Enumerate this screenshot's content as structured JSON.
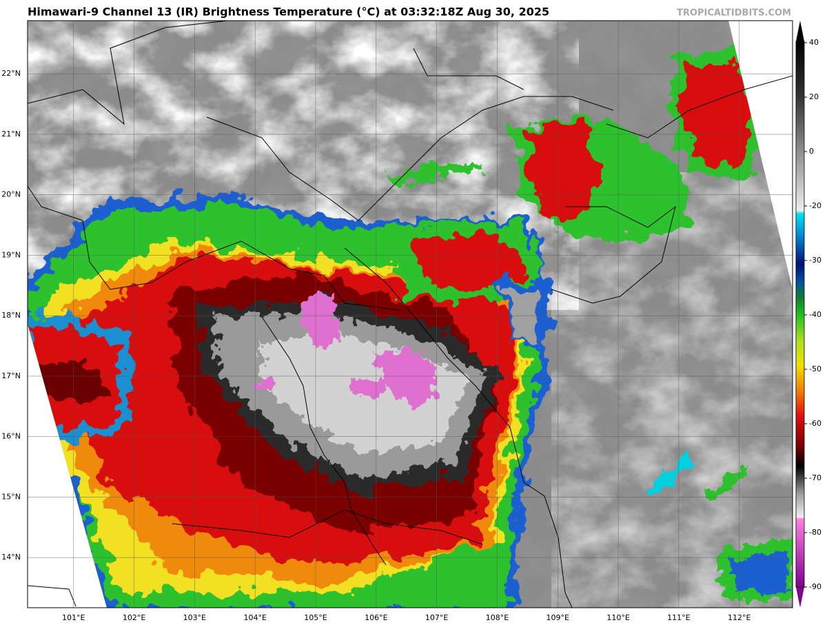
{
  "header": {
    "title": "Himawari-9 Channel 13 (IR) Brightness Temperature (°C) at 03:32:18Z Aug 30, 2025",
    "watermark": "TROPICALTIDBITS.COM"
  },
  "map": {
    "xlim": [
      100.24,
      112.88
    ],
    "ylim": [
      13.17,
      22.88
    ],
    "xticks": [
      {
        "value": 101,
        "label": "101°E"
      },
      {
        "value": 102,
        "label": "102°E"
      },
      {
        "value": 103,
        "label": "103°E"
      },
      {
        "value": 104,
        "label": "104°E"
      },
      {
        "value": 105,
        "label": "105°E"
      },
      {
        "value": 106,
        "label": "106°E"
      },
      {
        "value": 107,
        "label": "107°E"
      },
      {
        "value": 108,
        "label": "108°E"
      },
      {
        "value": 109,
        "label": "109°E"
      },
      {
        "value": 110,
        "label": "110°E"
      },
      {
        "value": 111,
        "label": "111°E"
      },
      {
        "value": 112,
        "label": "112°E"
      }
    ],
    "yticks": [
      {
        "value": 14,
        "label": "14°N"
      },
      {
        "value": 15,
        "label": "15°N"
      },
      {
        "value": 16,
        "label": "16°N"
      },
      {
        "value": 17,
        "label": "17°N"
      },
      {
        "value": 18,
        "label": "18°N"
      },
      {
        "value": 19,
        "label": "19°N"
      },
      {
        "value": 20,
        "label": "20°N"
      },
      {
        "value": 21,
        "label": "21°N"
      },
      {
        "value": 22,
        "label": "22°N"
      }
    ]
  },
  "colorbar": {
    "ticks": [
      40,
      20,
      0,
      -20,
      -30,
      -40,
      -50,
      -60,
      -70,
      -80,
      -90
    ]
  }
}
